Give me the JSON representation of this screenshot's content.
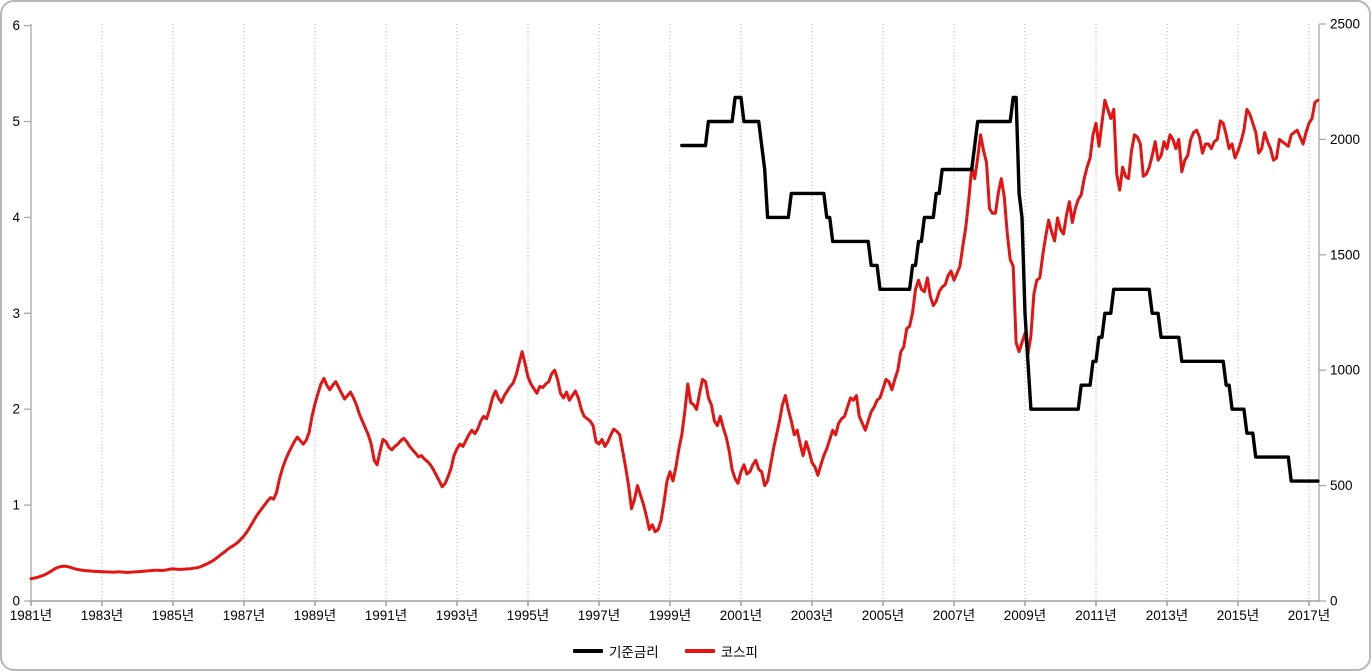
{
  "window": {
    "background": "#ffffff",
    "border_color": "#b7b7b7"
  },
  "chart_data": {
    "type": "line",
    "title": "",
    "grid": {
      "vertical_dotted": true,
      "color": "#a9a9a9"
    },
    "x_axis": {
      "labels": [
        "1981년",
        "1983년",
        "1985년",
        "1987년",
        "1989년",
        "1991년",
        "1993년",
        "1995년",
        "1997년",
        "1999년",
        "2001년",
        "2003년",
        "2005년",
        "2007년",
        "2009년",
        "2011년",
        "2013년",
        "2015년",
        "2017년"
      ],
      "years": [
        1981,
        1983,
        1985,
        1987,
        1989,
        1991,
        1993,
        1995,
        1997,
        1999,
        2001,
        2003,
        2005,
        2007,
        2009,
        2011,
        2013,
        2015,
        2017
      ],
      "range": [
        1981,
        2017.35
      ]
    },
    "y_axis_left": {
      "min": 0,
      "max": 6,
      "ticks": [
        0,
        1,
        2,
        3,
        4,
        5,
        6
      ]
    },
    "y_axis_right": {
      "min": 0,
      "max": 2500,
      "ticks": [
        0,
        500,
        1000,
        1500,
        2000,
        2500
      ]
    },
    "legend": {
      "position": "bottom-center",
      "entries": [
        {
          "label": "기준금리",
          "color": "#000000"
        },
        {
          "label": "코스피",
          "color": "#e31412"
        }
      ]
    },
    "series": [
      {
        "name": "기준금리",
        "axis": "left",
        "color": "#000000",
        "stroke_width": 3.4,
        "style": "step",
        "start": 1999.333,
        "end": 2017.29,
        "changes": [
          [
            1999.37,
            4.75
          ],
          [
            2000.08,
            5.0
          ],
          [
            2000.79,
            5.25
          ],
          [
            2001.08,
            5.0
          ],
          [
            2001.54,
            4.75
          ],
          [
            2001.62,
            4.5
          ],
          [
            2001.71,
            4.0
          ],
          [
            2002.37,
            4.25
          ],
          [
            2003.37,
            4.0
          ],
          [
            2003.54,
            3.75
          ],
          [
            2004.62,
            3.5
          ],
          [
            2004.87,
            3.25
          ],
          [
            2005.79,
            3.5
          ],
          [
            2005.96,
            3.75
          ],
          [
            2006.12,
            4.0
          ],
          [
            2006.46,
            4.25
          ],
          [
            2006.62,
            4.5
          ],
          [
            2007.54,
            4.75
          ],
          [
            2007.62,
            5.0
          ],
          [
            2008.62,
            5.25
          ],
          [
            2008.77,
            5.0
          ],
          [
            2008.81,
            4.25
          ],
          [
            2008.87,
            4.0
          ],
          [
            2008.96,
            3.0
          ],
          [
            2009.04,
            2.5
          ],
          [
            2009.12,
            2.0
          ],
          [
            2010.54,
            2.25
          ],
          [
            2010.87,
            2.5
          ],
          [
            2011.04,
            2.75
          ],
          [
            2011.21,
            3.0
          ],
          [
            2011.46,
            3.25
          ],
          [
            2012.54,
            3.0
          ],
          [
            2012.79,
            2.75
          ],
          [
            2013.37,
            2.5
          ],
          [
            2014.62,
            2.25
          ],
          [
            2014.79,
            2.0
          ],
          [
            2015.21,
            1.75
          ],
          [
            2015.46,
            1.5
          ],
          [
            2016.46,
            1.25
          ]
        ]
      },
      {
        "name": "코스피",
        "axis": "right",
        "color": "#e31412",
        "stroke_width": 3,
        "style": "line",
        "start_year": 1981,
        "interval_months": 1,
        "values": [
          97,
          99,
          102,
          106,
          110,
          116,
          123,
          131,
          139,
          145,
          149,
          151,
          150,
          147,
          143,
          139,
          136,
          134,
          132,
          131,
          130,
          129,
          128,
          128,
          127,
          126,
          126,
          125,
          125,
          126,
          126,
          125,
          124,
          124,
          125,
          126,
          127,
          128,
          129,
          130,
          131,
          132,
          133,
          133,
          132,
          133,
          135,
          138,
          139,
          138,
          137,
          137,
          138,
          139,
          140,
          142,
          144,
          147,
          152,
          158,
          164,
          171,
          179,
          189,
          199,
          209,
          219,
          229,
          237,
          245,
          255,
          268,
          282,
          300,
          320,
          342,
          364,
          383,
          400,
          417,
          434,
          448,
          441,
          470,
          530,
          575,
          610,
          640,
          665,
          690,
          710,
          695,
          680,
          695,
          730,
          800,
          855,
          900,
          940,
          965,
          935,
          915,
          935,
          950,
          925,
          900,
          875,
          890,
          905,
          880,
          850,
          810,
          780,
          750,
          720,
          680,
          610,
          590,
          650,
          700,
          690,
          665,
          655,
          670,
          680,
          695,
          705,
          690,
          670,
          655,
          640,
          625,
          630,
          615,
          605,
          590,
          570,
          545,
          520,
          495,
          510,
          540,
          575,
          630,
          660,
          680,
          670,
          695,
          720,
          740,
          725,
          745,
          780,
          800,
          790,
          830,
          880,
          910,
          880,
          860,
          890,
          910,
          930,
          945,
          980,
          1030,
          1080,
          1030,
          970,
          940,
          920,
          900,
          930,
          925,
          940,
          950,
          985,
          1000,
          960,
          900,
          880,
          905,
          870,
          890,
          910,
          880,
          830,
          800,
          790,
          780,
          760,
          690,
          680,
          700,
          670,
          690,
          720,
          745,
          735,
          720,
          650,
          580,
          500,
          400,
          440,
          500,
          460,
          420,
          370,
          310,
          330,
          300,
          310,
          350,
          430,
          520,
          560,
          520,
          580,
          660,
          720,
          820,
          940,
          860,
          850,
          830,
          900,
          960,
          950,
          880,
          850,
          780,
          760,
          800,
          750,
          710,
          650,
          570,
          530,
          510,
          560,
          590,
          550,
          560,
          590,
          610,
          570,
          560,
          500,
          520,
          590,
          660,
          720,
          780,
          850,
          890,
          830,
          780,
          720,
          740,
          680,
          630,
          690,
          650,
          600,
          580,
          545,
          590,
          630,
          660,
          700,
          740,
          720,
          770,
          790,
          800,
          840,
          880,
          870,
          890,
          800,
          770,
          740,
          780,
          820,
          840,
          870,
          880,
          920,
          960,
          950,
          915,
          960,
          1000,
          1080,
          1100,
          1180,
          1190,
          1250,
          1350,
          1390,
          1350,
          1340,
          1400,
          1320,
          1280,
          1300,
          1340,
          1360,
          1370,
          1410,
          1430,
          1390,
          1420,
          1450,
          1540,
          1620,
          1740,
          1880,
          1830,
          1920,
          2020,
          1950,
          1900,
          1700,
          1680,
          1680,
          1770,
          1830,
          1750,
          1590,
          1480,
          1450,
          1120,
          1080,
          1120,
          1160,
          1070,
          1150,
          1330,
          1390,
          1400,
          1500,
          1580,
          1650,
          1600,
          1560,
          1660,
          1610,
          1590,
          1670,
          1730,
          1640,
          1700,
          1740,
          1760,
          1830,
          1880,
          1920,
          2020,
          2070,
          1970,
          2070,
          2170,
          2130,
          2090,
          2130,
          1850,
          1780,
          1880,
          1840,
          1830,
          1950,
          2020,
          2010,
          1980,
          1840,
          1850,
          1880,
          1930,
          1990,
          1910,
          1930,
          1990,
          1960,
          2020,
          2000,
          1960,
          2000,
          1860,
          1910,
          1930,
          2000,
          2030,
          2040,
          2010,
          1940,
          1980,
          1980,
          1960,
          1990,
          2000,
          2080,
          2070,
          2020,
          1960,
          1980,
          1920,
          1950,
          1990,
          2040,
          2130,
          2110,
          2070,
          2030,
          1940,
          1960,
          2030,
          1990,
          1960,
          1910,
          1920,
          2000,
          1990,
          1980,
          1970,
          2020,
          2030,
          2040,
          2010,
          1980,
          2030,
          2070,
          2090,
          2160,
          2170
        ]
      }
    ]
  }
}
